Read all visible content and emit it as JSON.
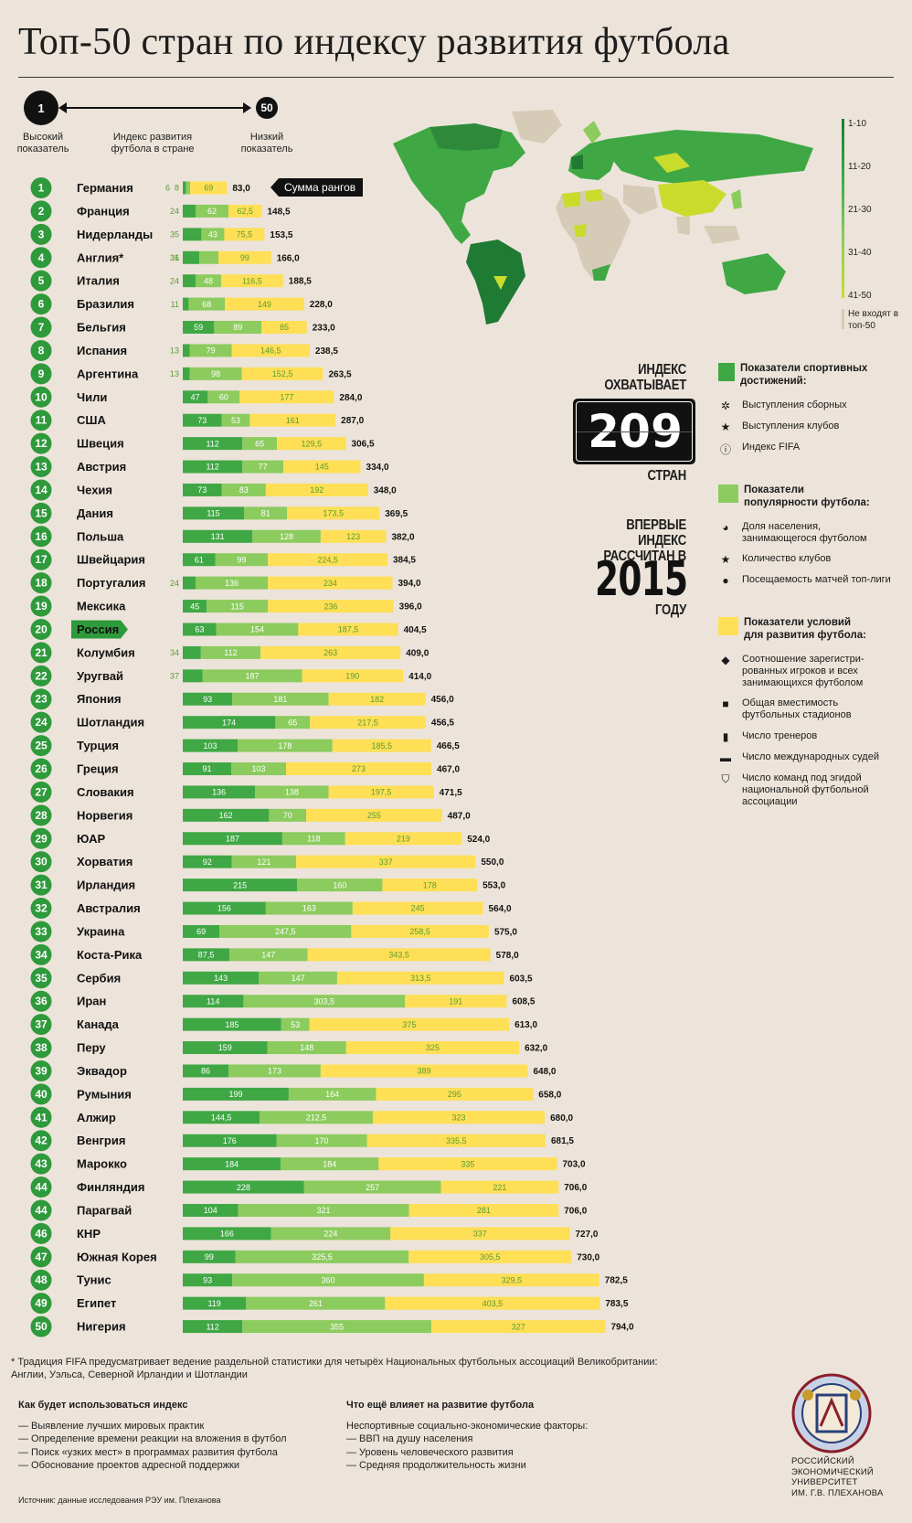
{
  "title": "Топ-50 стран по индексу развития футбола",
  "scale": {
    "high_rank": "1",
    "high_label": "Высокий показатель",
    "mid_label": "Индекс развития футбола в стране",
    "low_rank": "50",
    "low_label": "Низкий показатель",
    "sum_tag": "Сумма рангов"
  },
  "colors": {
    "dark_green": "#3fa845",
    "light_green": "#8ccb5e",
    "yellow": "#fedf56",
    "rank_green": "#2e9a3b",
    "background": "#ece4da"
  },
  "map_legend": {
    "items": [
      "1-10",
      "11-20",
      "21-30",
      "31-40",
      "41-50"
    ],
    "excluded": "Не входят в топ-50"
  },
  "index_block": {
    "line1": "ИНДЕКС",
    "line2": "ОХВАТЫВАЕТ",
    "number_digits": [
      "2",
      "0",
      "9"
    ],
    "line3": "СТРАН"
  },
  "year_block": {
    "line1": "ВПЕРВЫЕ ИНДЕКС",
    "line2": "РАССЧИТАН В",
    "year": "2015",
    "line3": "ГОДУ"
  },
  "legend": {
    "groups": [
      {
        "title": "Показатели спортивных достижений:",
        "color": "#3fa845",
        "items": [
          {
            "icon": "team-icon",
            "glyph": "✲",
            "label": "Выступления сборных"
          },
          {
            "icon": "star-icon",
            "glyph": "★",
            "label": "Выступления клубов"
          },
          {
            "icon": "info-icon",
            "glyph": "ⓘ",
            "label": "Индекс FIFA"
          }
        ]
      },
      {
        "title": "Показатели популярности футбола:",
        "color": "#8ccb5e",
        "items": [
          {
            "icon": "pie-icon",
            "glyph": "◕",
            "label": "Доля населения, занимающегося футболом"
          },
          {
            "icon": "star-icon",
            "glyph": "★",
            "label": "Количество клубов"
          },
          {
            "icon": "head-icon",
            "glyph": "●",
            "label": "Посещаемость матчей топ-лиги"
          }
        ]
      },
      {
        "title": "Показатели условий для развития футбола:",
        "color": "#fedf56",
        "items": [
          {
            "icon": "tag-icon",
            "glyph": "◆",
            "label": "Соотношение зарегистри-рованных игроков и всех занимающихся футболом"
          },
          {
            "icon": "stadium-icon",
            "glyph": "■",
            "label": "Общая вместимость футбольных стадионов"
          },
          {
            "icon": "coach-icon",
            "glyph": "▮",
            "label": "Число тренеров"
          },
          {
            "icon": "whistle-icon",
            "glyph": "▬",
            "label": "Число международных судей"
          },
          {
            "icon": "shield-icon",
            "glyph": "⛉",
            "label": "Число команд под эгидой национальной футбольной ассоциации"
          }
        ]
      }
    ]
  },
  "footnote": "* Традиция FIFA предусматривает ведение раздельной статистики для четырёх Национальных футбольных ассоциаций Великобритании: Англии, Уэльса, Северной Ирландии и Шотландии",
  "usage": {
    "title": "Как будет использоваться индекс",
    "items": [
      "— Выявление лучших мировых практик",
      "— Определение времени реакции на вложения в футбол",
      "— Поиск «узких мест» в программах развития футбола",
      "— Обоснование проектов адресной поддержки"
    ]
  },
  "factors": {
    "title": "Что ещё влияет на развитие футбола",
    "subtitle": "Неспортивные социально-экономические факторы:",
    "items": [
      "— ВВП на душу населения",
      "— Уровень человеческого развития",
      "— Средняя продолжительность жизни"
    ]
  },
  "source": "Источник: данные исследования РЭУ им. Плеханова",
  "university": [
    "РОССИЙСКИЙ",
    "ЭКОНОМИЧЕСКИЙ",
    "УНИВЕРСИТЕТ",
    "ИМ. Г.В. ПЛЕХАНОВА"
  ],
  "chart_data": {
    "type": "bar",
    "stacked": true,
    "highlight": "Россия",
    "series_names": [
      "Показатели спортивных достижений",
      "Показатели популярности футбола",
      "Показатели условий для развития футбола"
    ],
    "rows": [
      {
        "rank": "1",
        "country": "Германия",
        "values": [
          6,
          8,
          69
        ],
        "labels": [
          "6",
          "8",
          "69"
        ],
        "total": "83,0"
      },
      {
        "rank": "2",
        "country": "Франция",
        "values": [
          24,
          62,
          62.5
        ],
        "labels": [
          "24",
          "62",
          "62,5"
        ],
        "total": "148,5"
      },
      {
        "rank": "3",
        "country": "Нидерланды",
        "values": [
          35,
          43,
          75.5
        ],
        "labels": [
          "35",
          "43",
          "75,5"
        ],
        "total": "153,5"
      },
      {
        "rank": "4",
        "country": "Англия*",
        "values": [
          31,
          36,
          99
        ],
        "labels": [
          "31",
          "36",
          "99"
        ],
        "total": "166,0"
      },
      {
        "rank": "5",
        "country": "Италия",
        "values": [
          24,
          48,
          116.5
        ],
        "labels": [
          "24",
          "48",
          "116,5"
        ],
        "total": "188,5"
      },
      {
        "rank": "6",
        "country": "Бразилия",
        "values": [
          11,
          68,
          149
        ],
        "labels": [
          "11",
          "68",
          "149"
        ],
        "total": "228,0"
      },
      {
        "rank": "7",
        "country": "Бельгия",
        "values": [
          59,
          89,
          85
        ],
        "labels": [
          "59",
          "89",
          "85"
        ],
        "total": "233,0"
      },
      {
        "rank": "8",
        "country": "Испания",
        "values": [
          13,
          79,
          146.5
        ],
        "labels": [
          "13",
          "79",
          "146,5"
        ],
        "total": "238,5"
      },
      {
        "rank": "9",
        "country": "Аргентина",
        "values": [
          13,
          98,
          152.5
        ],
        "labels": [
          "13",
          "98",
          "152,5"
        ],
        "total": "263,5"
      },
      {
        "rank": "10",
        "country": "Чили",
        "values": [
          47,
          60,
          177
        ],
        "labels": [
          "47",
          "60",
          "177"
        ],
        "total": "284,0"
      },
      {
        "rank": "11",
        "country": "США",
        "values": [
          73,
          53,
          161
        ],
        "labels": [
          "73",
          "53",
          "161"
        ],
        "total": "287,0"
      },
      {
        "rank": "12",
        "country": "Швеция",
        "values": [
          112,
          65,
          129.5
        ],
        "labels": [
          "112",
          "65",
          "129,5"
        ],
        "total": "306,5"
      },
      {
        "rank": "13",
        "country": "Австрия",
        "values": [
          112,
          77,
          145
        ],
        "labels": [
          "112",
          "77",
          "145"
        ],
        "total": "334,0"
      },
      {
        "rank": "14",
        "country": "Чехия",
        "values": [
          73,
          83,
          192
        ],
        "labels": [
          "73",
          "83",
          "192"
        ],
        "total": "348,0"
      },
      {
        "rank": "15",
        "country": "Дания",
        "values": [
          115,
          81,
          173.5
        ],
        "labels": [
          "115",
          "81",
          "173,5"
        ],
        "total": "369,5"
      },
      {
        "rank": "16",
        "country": "Польша",
        "values": [
          131,
          128,
          123
        ],
        "labels": [
          "131",
          "128",
          "123"
        ],
        "total": "382,0"
      },
      {
        "rank": "17",
        "country": "Швейцария",
        "values": [
          61,
          99,
          224.5
        ],
        "labels": [
          "61",
          "99",
          "224,5"
        ],
        "total": "384,5"
      },
      {
        "rank": "18",
        "country": "Португалия",
        "values": [
          24,
          136,
          234
        ],
        "labels": [
          "24",
          "136",
          "234"
        ],
        "total": "394,0"
      },
      {
        "rank": "19",
        "country": "Мексика",
        "values": [
          45,
          115,
          236
        ],
        "labels": [
          "45",
          "115",
          "236"
        ],
        "total": "396,0"
      },
      {
        "rank": "20",
        "country": "Россия",
        "values": [
          63,
          154,
          187.5
        ],
        "labels": [
          "63",
          "154",
          "187,5"
        ],
        "total": "404,5"
      },
      {
        "rank": "21",
        "country": "Колумбия",
        "values": [
          34,
          112,
          263
        ],
        "labels": [
          "34",
          "112",
          "263"
        ],
        "total": "409,0"
      },
      {
        "rank": "22",
        "country": "Уругвай",
        "values": [
          37,
          187,
          190
        ],
        "labels": [
          "37",
          "187",
          "190"
        ],
        "total": "414,0"
      },
      {
        "rank": "23",
        "country": "Япония",
        "values": [
          93,
          181,
          182
        ],
        "labels": [
          "93",
          "181",
          "182"
        ],
        "total": "456,0"
      },
      {
        "rank": "24",
        "country": "Шотландия",
        "values": [
          174,
          65,
          217.5
        ],
        "labels": [
          "174",
          "65",
          "217,5"
        ],
        "total": "456,5"
      },
      {
        "rank": "25",
        "country": "Турция",
        "values": [
          103,
          178,
          185.5
        ],
        "labels": [
          "103",
          "178",
          "185,5"
        ],
        "total": "466,5"
      },
      {
        "rank": "26",
        "country": "Греция",
        "values": [
          91,
          103,
          273
        ],
        "labels": [
          "91",
          "103",
          "273"
        ],
        "total": "467,0"
      },
      {
        "rank": "27",
        "country": "Словакия",
        "values": [
          136,
          138,
          197.5
        ],
        "labels": [
          "136",
          "138",
          "197,5"
        ],
        "total": "471,5"
      },
      {
        "rank": "28",
        "country": "Норвегия",
        "values": [
          162,
          70,
          255
        ],
        "labels": [
          "162",
          "70",
          "255"
        ],
        "total": "487,0"
      },
      {
        "rank": "29",
        "country": "ЮАР",
        "values": [
          187,
          118,
          219
        ],
        "labels": [
          "187",
          "118",
          "219"
        ],
        "total": "524,0"
      },
      {
        "rank": "30",
        "country": "Хорватия",
        "values": [
          92,
          121,
          337
        ],
        "labels": [
          "92",
          "121",
          "337"
        ],
        "total": "550,0"
      },
      {
        "rank": "31",
        "country": "Ирландия",
        "values": [
          215,
          160,
          178
        ],
        "labels": [
          "215",
          "160",
          "178"
        ],
        "total": "553,0"
      },
      {
        "rank": "32",
        "country": "Австралия",
        "values": [
          156,
          163,
          245
        ],
        "labels": [
          "156",
          "163",
          "245"
        ],
        "total": "564,0"
      },
      {
        "rank": "33",
        "country": "Украина",
        "values": [
          69,
          247.5,
          258.5
        ],
        "labels": [
          "69",
          "247,5",
          "258,5"
        ],
        "total": "575,0"
      },
      {
        "rank": "34",
        "country": "Коста-Рика",
        "values": [
          87.5,
          147,
          343.5
        ],
        "labels": [
          "87,5",
          "147",
          "343,5"
        ],
        "total": "578,0"
      },
      {
        "rank": "35",
        "country": "Сербия",
        "values": [
          143,
          147,
          313.5
        ],
        "labels": [
          "143",
          "147",
          "313,5"
        ],
        "total": "603,5"
      },
      {
        "rank": "36",
        "country": "Иран",
        "values": [
          114,
          303.5,
          191
        ],
        "labels": [
          "114",
          "303,5",
          "191"
        ],
        "total": "608,5"
      },
      {
        "rank": "37",
        "country": "Канада",
        "values": [
          185,
          53,
          375
        ],
        "labels": [
          "185",
          "53",
          "375"
        ],
        "total": "613,0"
      },
      {
        "rank": "38",
        "country": "Перу",
        "values": [
          159,
          148,
          325
        ],
        "labels": [
          "159",
          "148",
          "325"
        ],
        "total": "632,0"
      },
      {
        "rank": "39",
        "country": "Эквадор",
        "values": [
          86,
          173,
          389
        ],
        "labels": [
          "86",
          "173",
          "389"
        ],
        "total": "648,0"
      },
      {
        "rank": "40",
        "country": "Румыния",
        "values": [
          199,
          164,
          295
        ],
        "labels": [
          "199",
          "164",
          "295"
        ],
        "total": "658,0"
      },
      {
        "rank": "41",
        "country": "Алжир",
        "values": [
          144.5,
          212.5,
          323
        ],
        "labels": [
          "144,5",
          "212,5",
          "323"
        ],
        "total": "680,0"
      },
      {
        "rank": "42",
        "country": "Венгрия",
        "values": [
          176,
          170,
          335.5
        ],
        "labels": [
          "176",
          "170",
          "335,5"
        ],
        "total": "681,5"
      },
      {
        "rank": "43",
        "country": "Марокко",
        "values": [
          184,
          184,
          335
        ],
        "labels": [
          "184",
          "184",
          "335"
        ],
        "total": "703,0"
      },
      {
        "rank": "44",
        "country": "Финляндия",
        "values": [
          228,
          257,
          221
        ],
        "labels": [
          "228",
          "257",
          "221"
        ],
        "total": "706,0"
      },
      {
        "rank": "44",
        "country": "Парагвай",
        "values": [
          104,
          321,
          281
        ],
        "labels": [
          "104",
          "321",
          "281"
        ],
        "total": "706,0"
      },
      {
        "rank": "46",
        "country": "КНР",
        "values": [
          166,
          224,
          337
        ],
        "labels": [
          "166",
          "224",
          "337"
        ],
        "total": "727,0"
      },
      {
        "rank": "47",
        "country": "Южная Корея",
        "values": [
          99,
          325.5,
          305.5
        ],
        "labels": [
          "99",
          "325,5",
          "305,5"
        ],
        "total": "730,0"
      },
      {
        "rank": "48",
        "country": "Тунис",
        "values": [
          93,
          360,
          329.5
        ],
        "labels": [
          "93",
          "360",
          "329,5"
        ],
        "total": "782,5"
      },
      {
        "rank": "49",
        "country": "Египет",
        "values": [
          119,
          261,
          403.5
        ],
        "labels": [
          "119",
          "261",
          "403,5"
        ],
        "total": "783,5"
      },
      {
        "rank": "50",
        "country": "Нигерия",
        "values": [
          112,
          355,
          327
        ],
        "labels": [
          "112",
          "355",
          "327"
        ],
        "total": "794,0"
      }
    ]
  }
}
